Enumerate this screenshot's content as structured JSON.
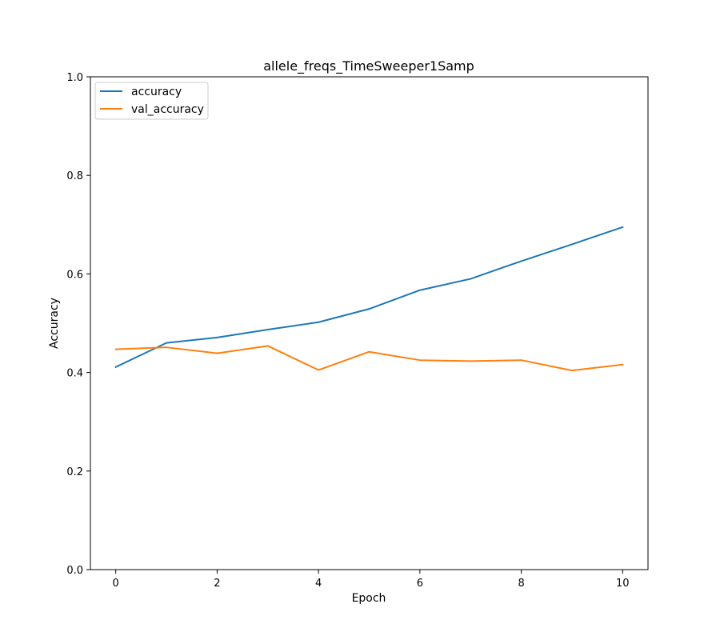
{
  "chart_data": {
    "type": "line",
    "title": "allele_freqs_TimeSweeper1Samp",
    "xlabel": "Epoch",
    "ylabel": "Accuracy",
    "xlim": [
      -0.5,
      10.5
    ],
    "ylim": [
      0.0,
      1.0
    ],
    "xticks": [
      0,
      2,
      4,
      6,
      8,
      10
    ],
    "yticks": [
      0.0,
      0.2,
      0.4,
      0.6,
      0.8,
      1.0
    ],
    "xtick_labels": [
      "0",
      "2",
      "4",
      "6",
      "8",
      "10"
    ],
    "ytick_labels": [
      "0.0",
      "0.2",
      "0.4",
      "0.6",
      "0.8",
      "1.0"
    ],
    "grid": false,
    "legend_position": "upper-left",
    "x": [
      0,
      1,
      2,
      3,
      4,
      5,
      6,
      7,
      8,
      9,
      10
    ],
    "series": [
      {
        "name": "accuracy",
        "color": "#1f77b4",
        "values": [
          0.411,
          0.46,
          0.471,
          0.487,
          0.502,
          0.529,
          0.567,
          0.59,
          0.626,
          0.66,
          0.695
        ]
      },
      {
        "name": "val_accuracy",
        "color": "#ff7f0e",
        "values": [
          0.447,
          0.451,
          0.439,
          0.454,
          0.405,
          0.442,
          0.425,
          0.423,
          0.425,
          0.404,
          0.416
        ]
      }
    ]
  }
}
